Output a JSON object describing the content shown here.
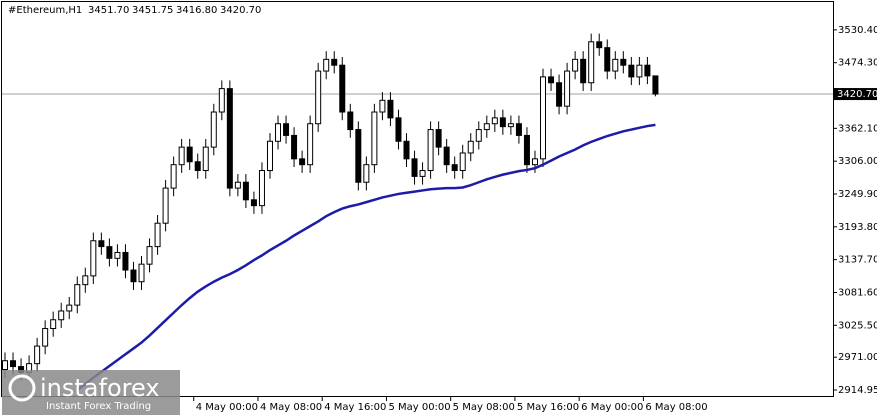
{
  "chart_data": {
    "type": "candlestick",
    "symbol_label": "#Ethereum,H1",
    "ohlc_labels": [
      "3451.70",
      "3451.75",
      "3416.80",
      "3420.70"
    ],
    "categories": [
      null,
      null,
      null,
      null,
      null,
      null,
      null,
      null,
      null,
      null,
      null,
      null,
      null,
      null,
      null,
      null,
      null,
      null,
      null,
      null,
      null,
      null,
      null,
      null,
      "4 May 00:00",
      null,
      null,
      null,
      null,
      null,
      null,
      null,
      "4 May 08:00",
      null,
      null,
      null,
      null,
      null,
      null,
      null,
      "4 May 16:00",
      null,
      null,
      null,
      null,
      null,
      null,
      null,
      "5 May 00:00",
      null,
      null,
      null,
      null,
      null,
      null,
      null,
      "5 May 08:00",
      null,
      null,
      null,
      null,
      null,
      null,
      null,
      "5 May 16:00",
      null,
      null,
      null,
      null,
      null,
      null,
      null,
      "6 May 00:00",
      null,
      null,
      null,
      null,
      null,
      null,
      null,
      "6 May 08:00",
      null
    ],
    "open": [
      2950,
      2965,
      2955,
      2945,
      2960,
      2990,
      3020,
      3035,
      3050,
      3060,
      3095,
      3110,
      3170,
      3160,
      3140,
      3150,
      3120,
      3100,
      3130,
      3160,
      3200,
      3260,
      3300,
      3330,
      3305,
      3290,
      3330,
      3390,
      3430,
      3260,
      3270,
      3240,
      3230,
      3290,
      3340,
      3370,
      3350,
      3310,
      3300,
      3370,
      3460,
      3480,
      3470,
      3390,
      3360,
      3270,
      3300,
      3390,
      3410,
      3380,
      3340,
      3310,
      3280,
      3290,
      3360,
      3330,
      3300,
      3290,
      3320,
      3340,
      3360,
      3370,
      3380,
      3365,
      3370,
      3350,
      3300,
      3310,
      3450,
      3440,
      3400,
      3460,
      3480,
      3440,
      3510,
      3500,
      3460,
      3480,
      3470,
      3450,
      3470,
      3451.7
    ],
    "high": [
      2979,
      2979,
      2969,
      2974,
      3004,
      3034,
      3049,
      3064,
      3074,
      3109,
      3124,
      3184,
      3184,
      3174,
      3164,
      3164,
      3134,
      3144,
      3174,
      3214,
      3274,
      3314,
      3344,
      3344,
      3319,
      3344,
      3404,
      3444,
      3444,
      3284,
      3284,
      3254,
      3304,
      3354,
      3384,
      3384,
      3364,
      3324,
      3384,
      3474,
      3494,
      3494,
      3484,
      3404,
      3374,
      3314,
      3404,
      3424,
      3424,
      3394,
      3354,
      3324,
      3304,
      3374,
      3374,
      3344,
      3314,
      3334,
      3354,
      3374,
      3384,
      3394,
      3394,
      3384,
      3384,
      3364,
      3324,
      3464,
      3464,
      3454,
      3474,
      3494,
      3494,
      3524,
      3524,
      3514,
      3494,
      3494,
      3484,
      3484,
      3484,
      3451.75
    ],
    "low": [
      2936,
      2941,
      2931,
      2931,
      2946,
      2976,
      3006,
      3021,
      3036,
      3046,
      3081,
      3096,
      3146,
      3126,
      3126,
      3106,
      3086,
      3086,
      3116,
      3146,
      3186,
      3246,
      3286,
      3291,
      3276,
      3276,
      3316,
      3376,
      3246,
      3246,
      3226,
      3216,
      3216,
      3276,
      3326,
      3336,
      3296,
      3286,
      3286,
      3356,
      3446,
      3456,
      3376,
      3346,
      3256,
      3256,
      3286,
      3376,
      3366,
      3326,
      3296,
      3266,
      3266,
      3276,
      3316,
      3286,
      3276,
      3276,
      3306,
      3326,
      3346,
      3356,
      3351,
      3351,
      3336,
      3286,
      3286,
      3296,
      3426,
      3386,
      3386,
      3446,
      3426,
      3426,
      3486,
      3446,
      3446,
      3456,
      3436,
      3436,
      3437.7,
      3416.8
    ],
    "close": [
      2965,
      2955,
      2945,
      2960,
      2990,
      3020,
      3035,
      3050,
      3060,
      3095,
      3110,
      3170,
      3160,
      3140,
      3150,
      3120,
      3100,
      3130,
      3160,
      3200,
      3260,
      3300,
      3330,
      3305,
      3290,
      3330,
      3390,
      3430,
      3260,
      3270,
      3240,
      3230,
      3290,
      3340,
      3370,
      3350,
      3310,
      3300,
      3370,
      3460,
      3480,
      3470,
      3390,
      3360,
      3270,
      3300,
      3390,
      3410,
      3380,
      3340,
      3310,
      3280,
      3290,
      3360,
      3330,
      3300,
      3290,
      3320,
      3340,
      3360,
      3370,
      3380,
      3365,
      3370,
      3350,
      3300,
      3310,
      3450,
      3440,
      3400,
      3460,
      3480,
      3440,
      3510,
      3500,
      3460,
      3480,
      3470,
      3450,
      3470,
      3451.7,
      3420.7
    ],
    "up_color": "#ffffff",
    "down_color": "#000000",
    "moving_average": {
      "color": "#1c1ca8",
      "values": [
        null,
        null,
        null,
        null,
        null,
        null,
        null,
        null,
        null,
        2915,
        2925,
        2936,
        2946,
        2956,
        2966,
        2976,
        2986,
        2996,
        3008,
        3021,
        3034,
        3047,
        3060,
        3072,
        3083,
        3092,
        3100,
        3107,
        3113,
        3120,
        3128,
        3137,
        3145,
        3154,
        3162,
        3170,
        3179,
        3187,
        3195,
        3203,
        3212,
        3219,
        3225,
        3229,
        3232,
        3236,
        3240,
        3244,
        3247,
        3250,
        3252,
        3254,
        3256,
        3258,
        3259,
        3260,
        3260,
        3261,
        3265,
        3270,
        3275,
        3279,
        3283,
        3286,
        3289,
        3291,
        3294,
        3300,
        3307,
        3314,
        3320,
        3326,
        3333,
        3339,
        3344,
        3349,
        3353,
        3357,
        3360,
        3363,
        3366,
        3368
      ]
    },
    "current_price": {
      "value": 3420.7,
      "label": "3420.70"
    },
    "ylim": [
      2903,
      3578
    ],
    "yticks": [
      {
        "value": 3530.4,
        "label": "3530.40"
      },
      {
        "value": 3474.3,
        "label": "3474.30"
      },
      {
        "value": 3362.1,
        "label": "3362.10"
      },
      {
        "value": 3306,
        "label": "3306.00"
      },
      {
        "value": 3249.9,
        "label": "3249.90"
      },
      {
        "value": 3193.8,
        "label": "3193.80"
      },
      {
        "value": 3137.7,
        "label": "3137.70"
      },
      {
        "value": 3081.6,
        "label": "3081.60"
      },
      {
        "value": 3025.5,
        "label": "3025.50"
      },
      {
        "value": 2971,
        "label": "2971.00"
      },
      2914.95
    ],
    "watermark": {
      "brand": "instaforex",
      "tagline": "Instant Forex Trading"
    }
  }
}
